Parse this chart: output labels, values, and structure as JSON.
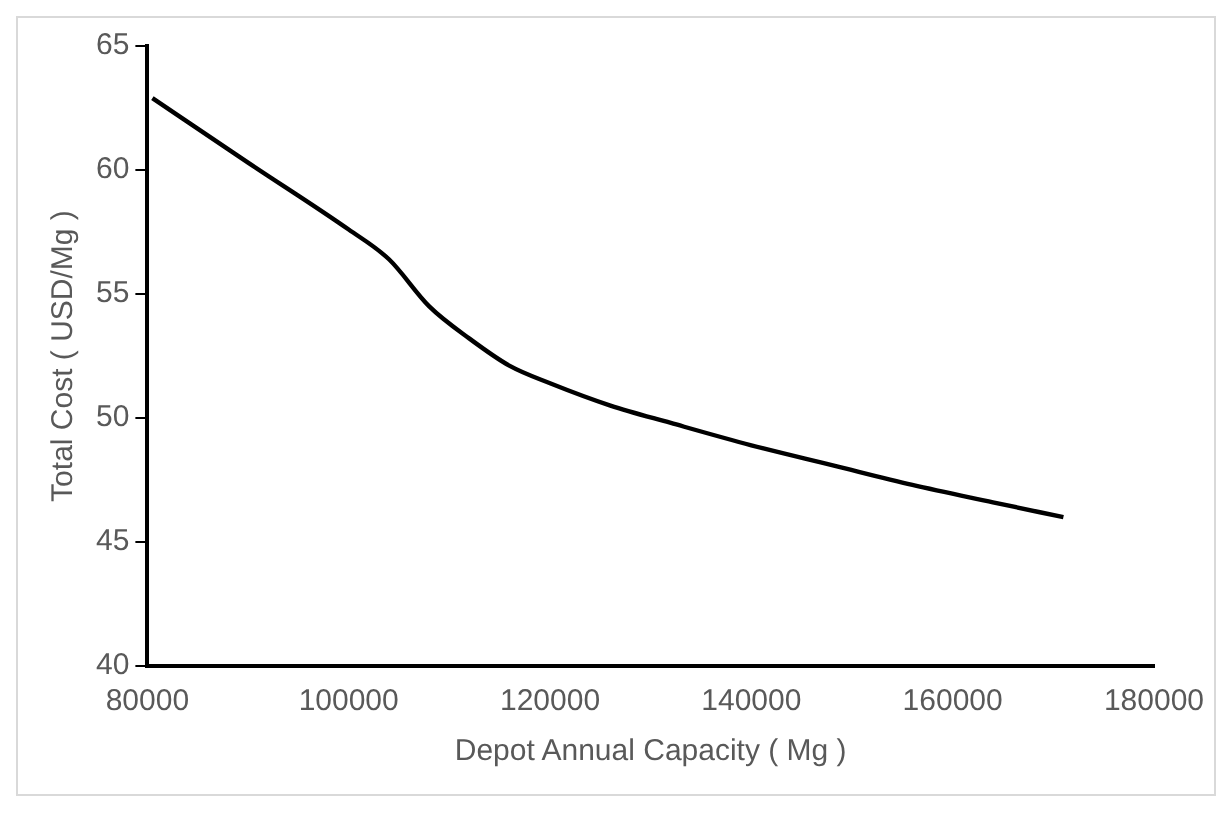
{
  "chart_data": {
    "type": "line",
    "xlabel": "Depot Annual Capacity ( Mg )",
    "ylabel": "Total Cost ( USD/Mg )",
    "x": [
      80500,
      90000,
      100000,
      104000,
      108000,
      112000,
      116000,
      120000,
      126000,
      132000,
      140000,
      148000,
      156000,
      164000,
      171000
    ],
    "series": [
      {
        "color": "#000000",
        "values": [
          62.9,
          60.3,
          57.6,
          56.4,
          54.5,
          53.2,
          52.1,
          51.4,
          50.5,
          49.8,
          48.9,
          48.1,
          47.3,
          46.6,
          46.0
        ]
      }
    ],
    "xlim": [
      80000,
      180000
    ],
    "xticks": [
      80000,
      100000,
      120000,
      140000,
      160000,
      180000
    ],
    "ylim": [
      40,
      65
    ],
    "yticks": [
      40,
      45,
      50,
      55,
      60,
      65
    ],
    "grid": false,
    "legend": false,
    "marker": "none",
    "line_style": "solid"
  }
}
